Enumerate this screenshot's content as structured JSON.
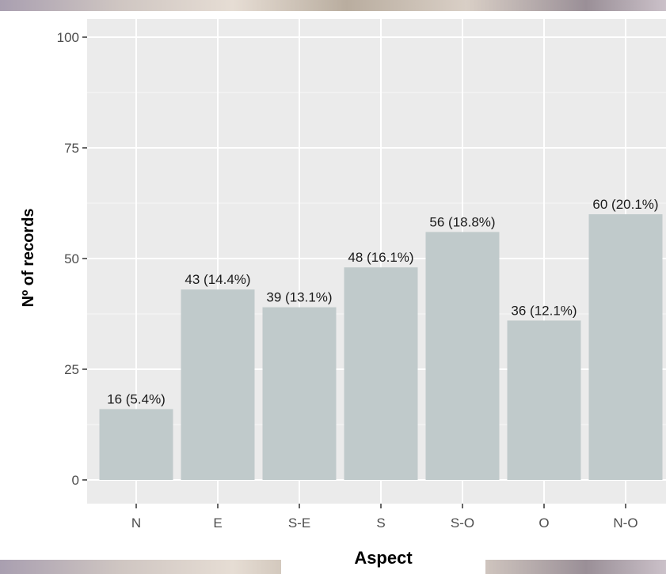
{
  "chart_data": {
    "type": "bar",
    "categories": [
      "N",
      "E",
      "S-E",
      "S",
      "S-O",
      "O",
      "N-O"
    ],
    "values": [
      16,
      43,
      39,
      48,
      56,
      36,
      60
    ],
    "data_labels": [
      "16 (5.4%)",
      "43 (14.4%)",
      "39 (13.1%)",
      "48 (16.1%)",
      "56 (18.8%)",
      "36 (12.1%)",
      "60 (20.1%)"
    ],
    "xlabel": "Aspect",
    "ylabel": "Nº of records",
    "ylim": [
      0,
      100
    ],
    "yticks": [
      0,
      25,
      50,
      75,
      100
    ],
    "ytick_labels": [
      "0",
      "25",
      "50",
      "75",
      "100"
    ],
    "grid": true,
    "bar_color": "#c0cacb",
    "panel_color": "#ebebeb"
  }
}
